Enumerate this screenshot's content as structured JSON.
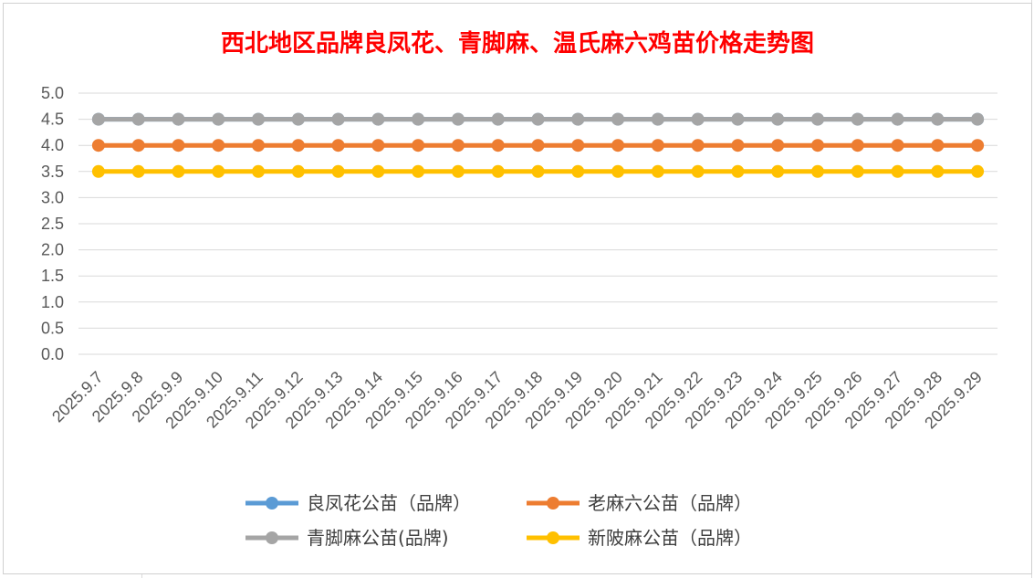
{
  "chart_data": {
    "type": "line",
    "title": "西北地区品牌良凤花、青脚麻、温氏麻六鸡苗价格走势图",
    "xlabel": "",
    "ylabel": "",
    "ylim": [
      0,
      5
    ],
    "yticks": [
      "0.0",
      "0.5",
      "1.0",
      "1.5",
      "2.0",
      "2.5",
      "3.0",
      "3.5",
      "4.0",
      "4.5",
      "5.0"
    ],
    "grid": true,
    "legend_position": "bottom",
    "categories": [
      "2025.9.7",
      "2025.9.8",
      "2025.9.9",
      "2025.9.10",
      "2025.9.11",
      "2025.9.12",
      "2025.9.13",
      "2025.9.14",
      "2025.9.15",
      "2025.9.16",
      "2025.9.17",
      "2025.9.18",
      "2025.9.19",
      "2025.9.20",
      "2025.9.21",
      "2025.9.22",
      "2025.9.23",
      "2025.9.24",
      "2025.9.25",
      "2025.9.26",
      "2025.9.27",
      "2025.9.28",
      "2025.9.29"
    ],
    "series": [
      {
        "name": "良凤花公苗（品牌）",
        "color": "#5b9bd5",
        "values": [
          4.5,
          4.5,
          4.5,
          4.5,
          4.5,
          4.5,
          4.5,
          4.5,
          4.5,
          4.5,
          4.5,
          4.5,
          4.5,
          4.5,
          4.5,
          4.5,
          4.5,
          4.5,
          4.5,
          4.5,
          4.5,
          4.5,
          4.5
        ]
      },
      {
        "name": "老麻六公苗（品牌）",
        "color": "#ed7d31",
        "values": [
          4.0,
          4.0,
          4.0,
          4.0,
          4.0,
          4.0,
          4.0,
          4.0,
          4.0,
          4.0,
          4.0,
          4.0,
          4.0,
          4.0,
          4.0,
          4.0,
          4.0,
          4.0,
          4.0,
          4.0,
          4.0,
          4.0,
          4.0
        ]
      },
      {
        "name": "青脚麻公苗(品牌)",
        "color": "#a5a5a5",
        "values": [
          4.5,
          4.5,
          4.5,
          4.5,
          4.5,
          4.5,
          4.5,
          4.5,
          4.5,
          4.5,
          4.5,
          4.5,
          4.5,
          4.5,
          4.5,
          4.5,
          4.5,
          4.5,
          4.5,
          4.5,
          4.5,
          4.5,
          4.5
        ]
      },
      {
        "name": "新陂麻公苗（品牌）",
        "color": "#ffc000",
        "values": [
          3.5,
          3.5,
          3.5,
          3.5,
          3.5,
          3.5,
          3.5,
          3.5,
          3.5,
          3.5,
          3.5,
          3.5,
          3.5,
          3.5,
          3.5,
          3.5,
          3.5,
          3.5,
          3.5,
          3.5,
          3.5,
          3.5,
          3.5
        ]
      }
    ]
  }
}
